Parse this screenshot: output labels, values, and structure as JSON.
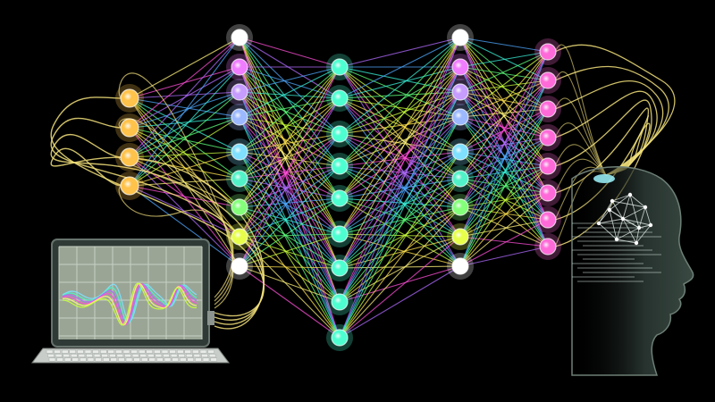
{
  "colors": {
    "background": "#000000",
    "wire_warm": "#f2e07a",
    "wire_palette": [
      "#fff27a",
      "#ff4fd8",
      "#b06bff",
      "#4fa8ff",
      "#39f0d8",
      "#5cff7a",
      "#c8ff3c",
      "#ffe14f"
    ],
    "laptop_screen": "#9aa596",
    "laptop_frame": "#3d4a45",
    "head_silhouette": "#1f2a26"
  },
  "network": {
    "layers": [
      {
        "name": "input",
        "count": 4,
        "node_color": "#ffc24a"
      },
      {
        "name": "hidden-1",
        "count": 9,
        "node_colors": [
          "#ffffff",
          "#f07cff",
          "#c69cff",
          "#9cb8ff",
          "#7fe0ff",
          "#52f2c8",
          "#84ff7a",
          "#e7ff4a",
          "#ffffff"
        ]
      },
      {
        "name": "hidden-2",
        "count": 9,
        "node_color": "#4dffd0"
      },
      {
        "name": "hidden-3",
        "count": 9,
        "node_colors": [
          "#ffffff",
          "#f07cff",
          "#c69cff",
          "#9cb8ff",
          "#7fe0ff",
          "#52f2c8",
          "#84ff7a",
          "#e7ff4a",
          "#ffffff"
        ]
      },
      {
        "name": "output",
        "count": 8,
        "node_color": "#ff6ad8"
      }
    ]
  },
  "icons": {
    "laptop": "laptop-icon",
    "waveform": "waveform-icon",
    "head": "human-head-icon",
    "brain_network": "brain-network-icon"
  }
}
